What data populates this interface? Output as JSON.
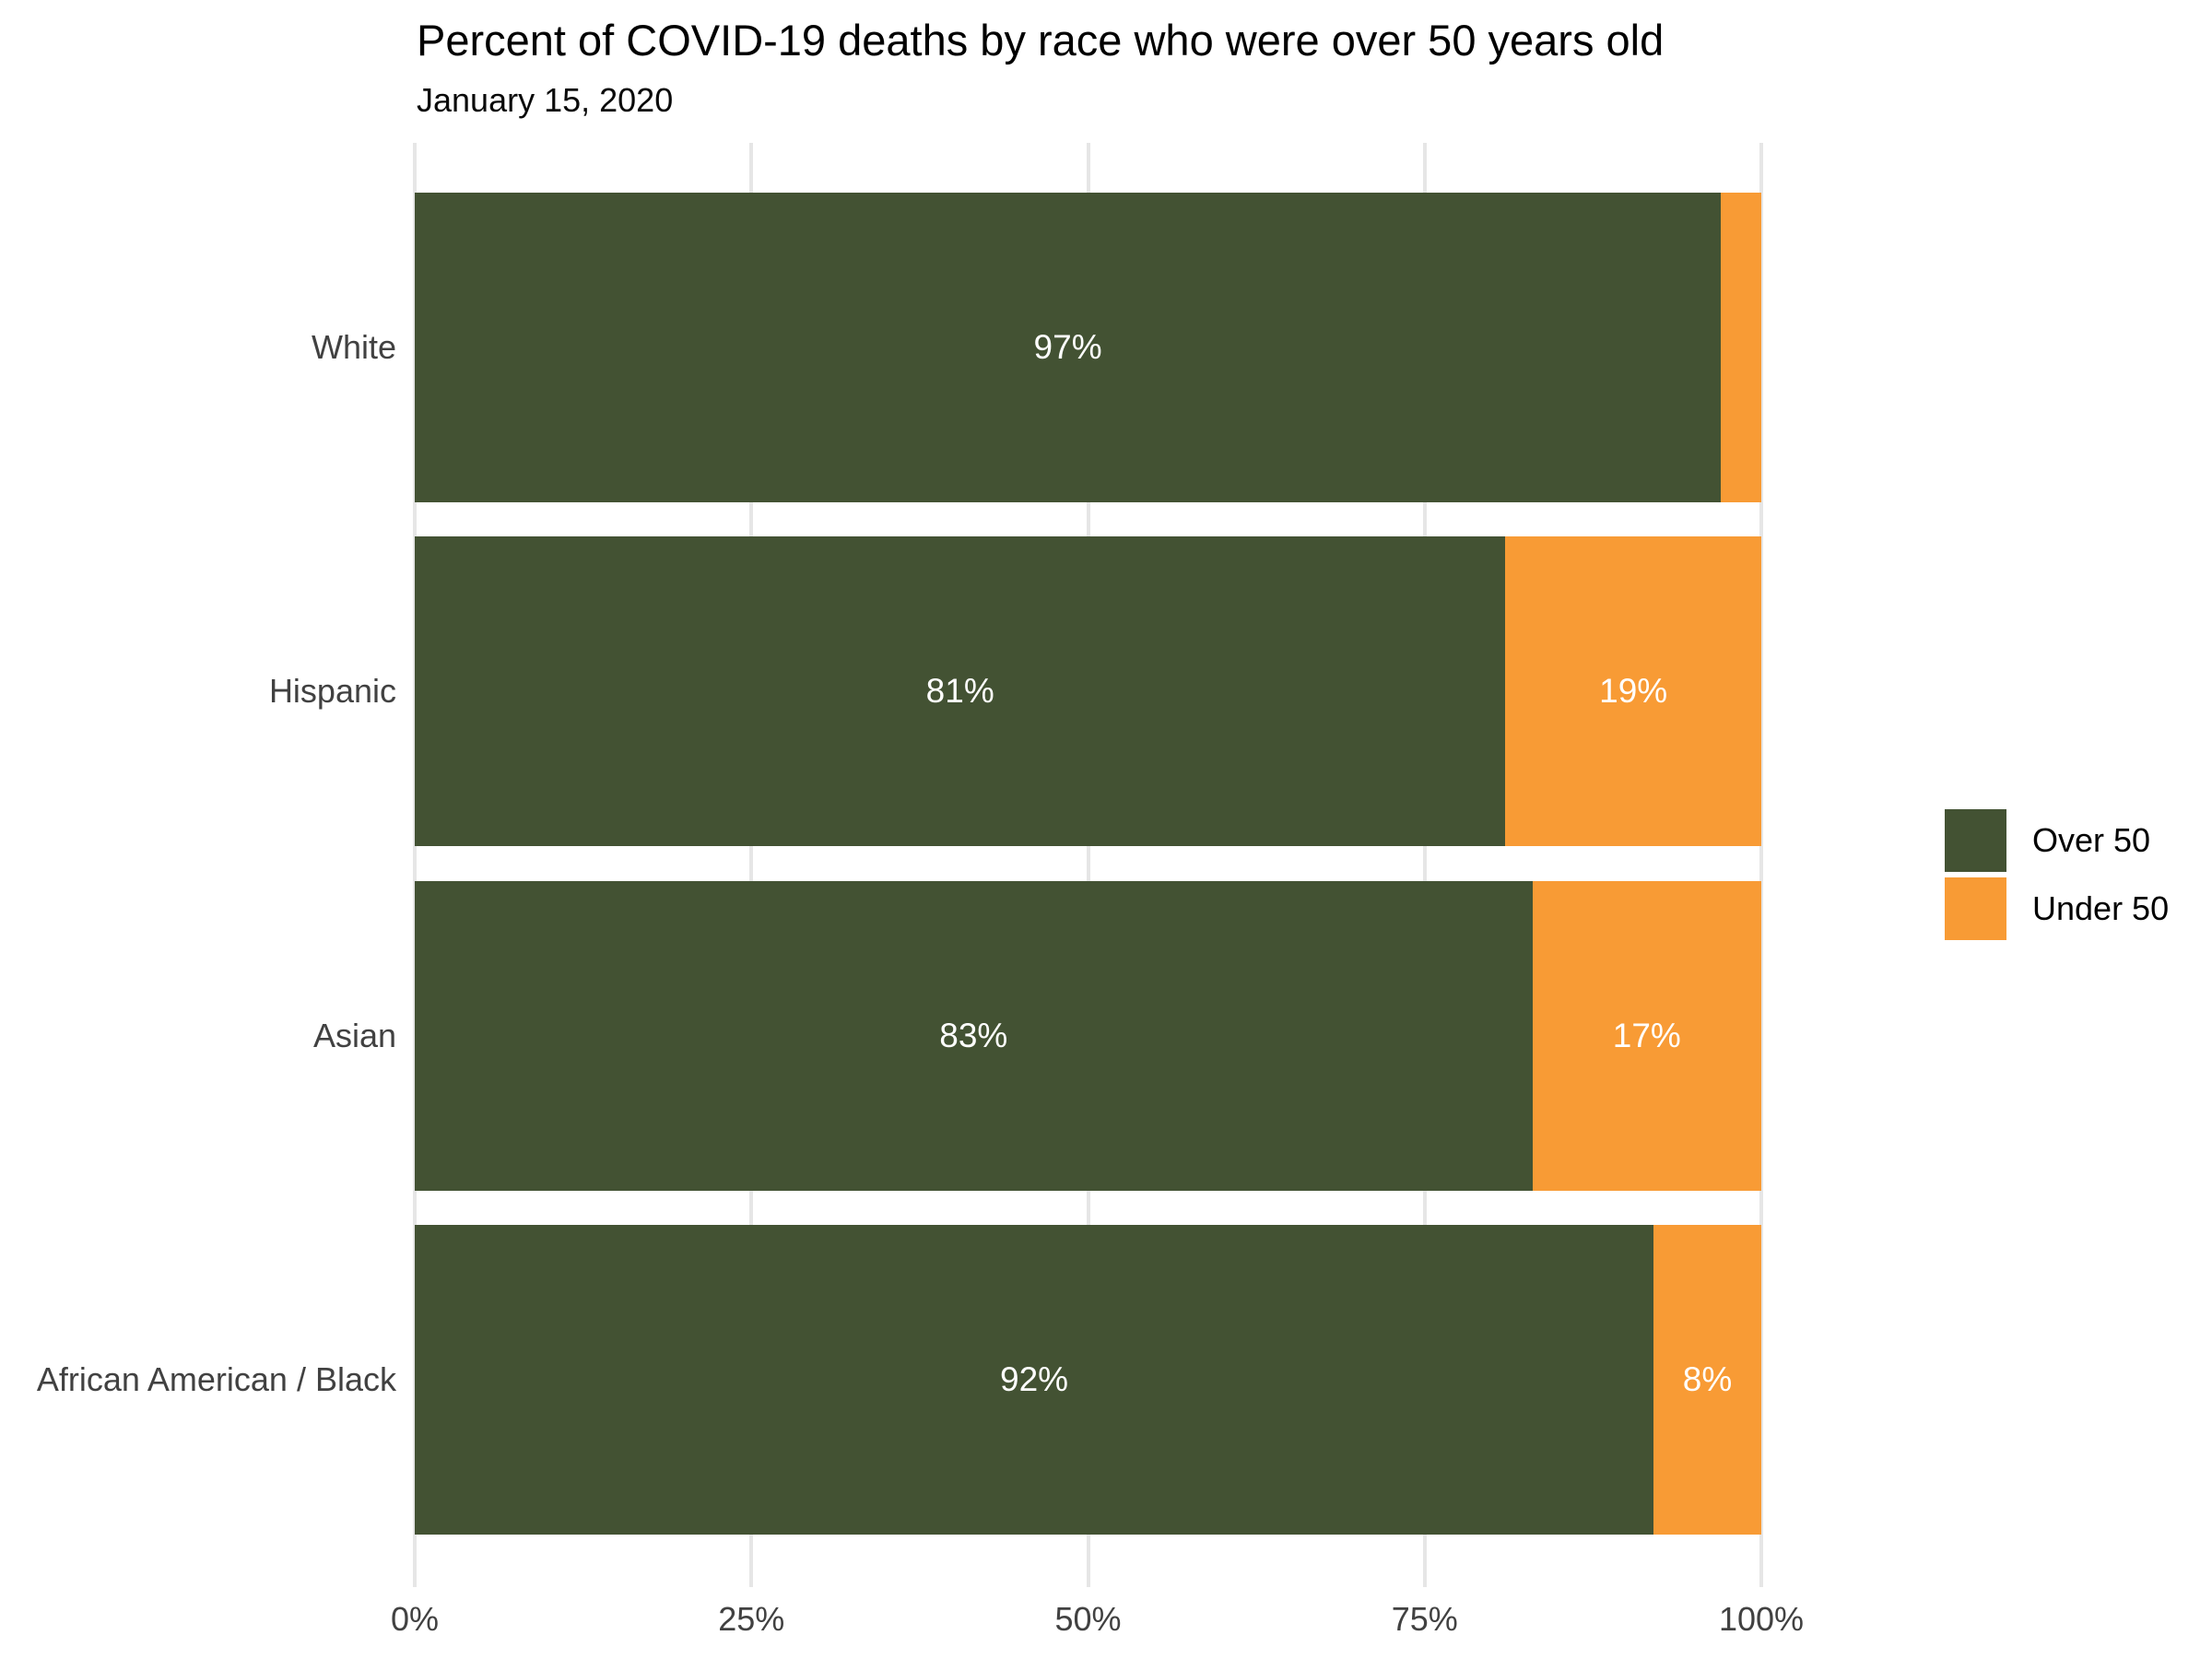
{
  "page": {
    "title": "Percent of COVID-19 deaths by race who were over 50 years old",
    "subtitle": "January 15, 2020"
  },
  "colors": {
    "over_50": "#435233",
    "under_50": "#F89B35",
    "gridline": "#E6E6E6",
    "axis_text": "#414141",
    "bar_label_text": "#FFFFFF",
    "title_text": "#000000",
    "background": "#FFFFFF"
  },
  "legend": {
    "position": "right-middle",
    "items": [
      {
        "label": "Over 50",
        "color": "#435233"
      },
      {
        "label": "Under 50",
        "color": "#F89B35"
      }
    ]
  },
  "chart_data": {
    "type": "bar",
    "orientation": "horizontal",
    "stacked": true,
    "title": "Percent of COVID-19 deaths by race who were over 50 years old",
    "subtitle": "January 15, 2020",
    "categories": [
      "White",
      "Hispanic",
      "Asian",
      "African American / Black"
    ],
    "series": [
      {
        "name": "Over 50",
        "color": "#435233",
        "values": [
          97,
          81,
          83,
          92
        ],
        "bar_labels": [
          "97%",
          "81%",
          "83%",
          "92%"
        ]
      },
      {
        "name": "Under 50",
        "color": "#F89B35",
        "values": [
          3,
          19,
          17,
          8
        ],
        "bar_labels": [
          "",
          "19%",
          "17%",
          "8%"
        ]
      }
    ],
    "x_axis": {
      "tick_labels": [
        "0%",
        "25%",
        "50%",
        "75%",
        "100%"
      ],
      "tick_values": [
        0,
        25,
        50,
        75,
        100
      ],
      "range": [
        0,
        100
      ],
      "unit": "%"
    },
    "y_axis": {
      "label": ""
    },
    "grid": "vertical-major",
    "legend_position": "right-middle"
  }
}
